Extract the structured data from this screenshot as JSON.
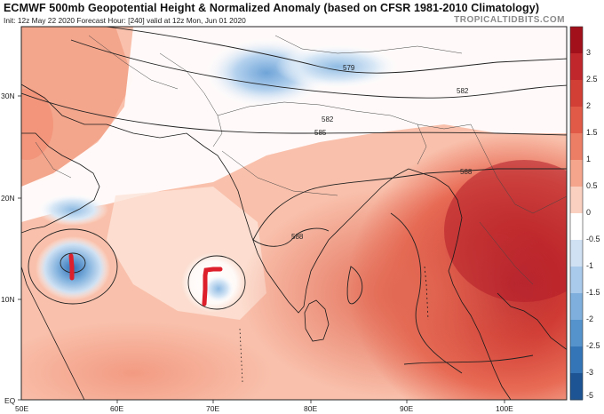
{
  "header": {
    "title": "ECMWF 500mb Geopotential Height & Normalized Anomaly (based on CFSR 1981-2010 Climatology)",
    "subtitle": "Init: 12z May 22 2020   Forecast Hour: [240]   valid at 12z Mon, Jun 01 2020",
    "watermark": "TROPICALTIDBITS.COM"
  },
  "map": {
    "lat_labels": [
      "30N",
      "20N",
      "10N",
      "EQ"
    ],
    "lon_labels": [
      "50E",
      "60E",
      "70E",
      "80E",
      "90E",
      "100E"
    ],
    "contour_labels": [
      "579",
      "582",
      "582",
      "585",
      "588",
      "588"
    ]
  },
  "colorbar": {
    "labels": [
      "3",
      "2.5",
      "2",
      "1.5",
      "1",
      "0.5",
      "0",
      "-0.5",
      "-1",
      "-1.5",
      "-2",
      "-2.5",
      "-3",
      "-5"
    ],
    "colors": [
      "#a2101c",
      "#c0272d",
      "#d13f35",
      "#e05a47",
      "#ec7e66",
      "#f4a58c",
      "#fad0c0",
      "#ffffff",
      "#cfe1f3",
      "#a9caea",
      "#7fb0dd",
      "#5593cd",
      "#3475b8",
      "#1c5494"
    ]
  },
  "annotations": {
    "marker_color": "#dd1e2b"
  }
}
